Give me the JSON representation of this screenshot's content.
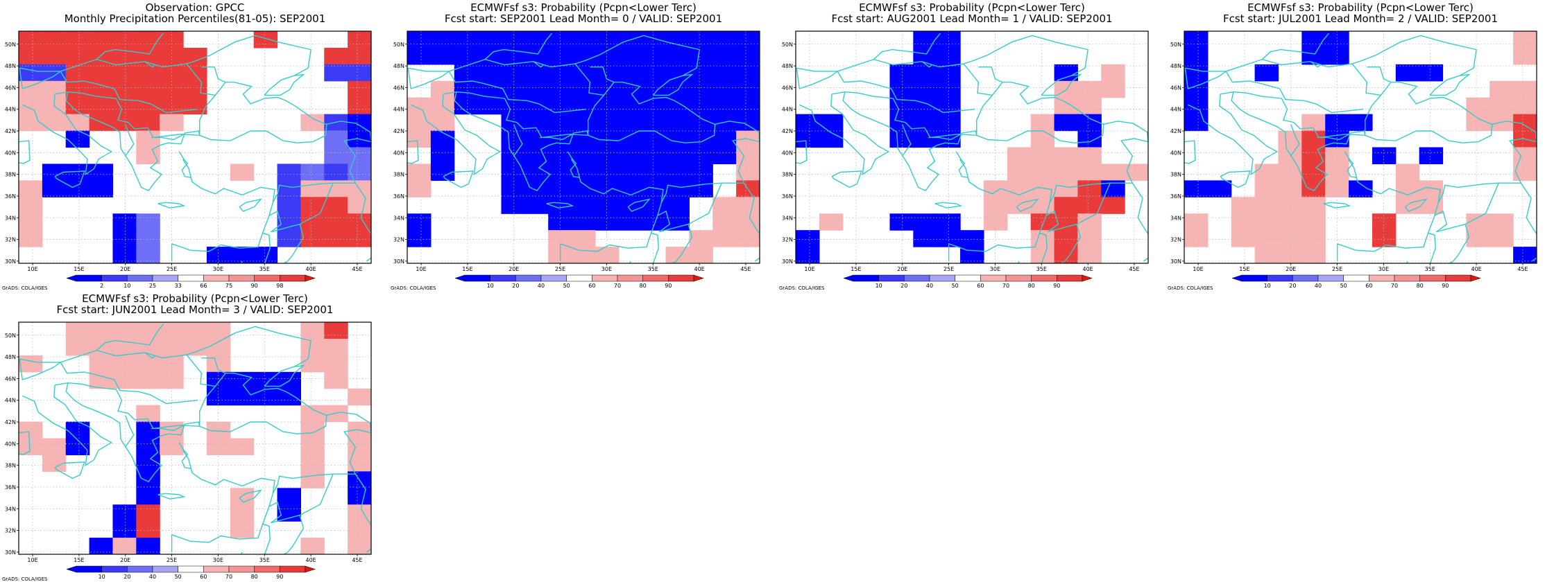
{
  "colors": {
    "blue1": "#0000ff",
    "blue2": "#3b3bf5",
    "blue3": "#6e6ef6",
    "blue4": "#a6a6f5",
    "white": "#ffffff",
    "red1": "#f7b4b4",
    "red2": "#f59494",
    "red3": "#f06a6a",
    "red4": "#ea3b3b",
    "red5": "#e31414",
    "coast": "#33cccc",
    "grid": "#bdbdbd",
    "frame": "#000000"
  },
  "axes": {
    "lon_labels": [
      "10E",
      "15E",
      "20E",
      "25E",
      "30E",
      "35E",
      "40E",
      "45E"
    ],
    "lat_labels": [
      "50N",
      "48N",
      "46N",
      "44N",
      "42N",
      "40N",
      "38N",
      "36N",
      "34N",
      "32N",
      "30N"
    ]
  },
  "credit": "GrADS: COLA/IGES",
  "panels": [
    {
      "title1": "Observation: GPCC",
      "title2": "Monthly Precipitation Percentiles(81-05): SEP2001",
      "colorbar": [
        "2",
        "10",
        "25",
        "33",
        "66",
        "75",
        "90",
        "98"
      ],
      "grid": [
        "rrrrrrrwwwrwwwr",
        "rrrrrrrrwwwwwrr",
        "ssrrrrrrwwwwwss",
        "pprrrrrrwwwwwwr",
        "pprrrrrrwwwwwwr",
        "ppprrrpwwwwwpsb",
        "wwbwwpwwwwwwwcb",
        "wwwwwpwwwwwwwcc",
        "wbbbwwwwwpwscsc",
        "pbbbwwwwwwwsppp",
        "pwwwwwwwwwwsrrp",
        "pwwwbcwwwwwsrrr",
        "pwwwbcwwwwwsrrr",
        "wwwwbcwwbbbwwww"
      ]
    },
    {
      "title1": "ECMWFsf s3: Probability (Pcpn<Lower Terc)",
      "title2": "Fcst start: SEP2001   Lead Month= 0 / VALID: SEP2001",
      "colorbar": [
        "10",
        "20",
        "40",
        "50",
        "60",
        "70",
        "80",
        "90"
      ],
      "grid": [
        "bbbbbbbbbbbbbbb",
        "bbbbbbbbbbbbbbb",
        "wwbbbbbbbbbbbbb",
        "wpbbbbbbbbbbbbb",
        "ppbbbbbbbbbbbbb",
        "ppwwbbbbbbbbbbb",
        "pbwwbbbbbbbbbbp",
        "wbwwbbbbbbbbbbp",
        "pbwwbbbbbbbbbwp",
        "pwwwbbbbbbbbbwr",
        "wwwwbbbbbbbbwpp",
        "bwwwwwbbbbbbwpp",
        "bwwwwwppwwwwppp",
        "wwwwwwpppwwppww"
      ]
    },
    {
      "title1": "ECMWFsf s3: Probability (Pcpn<Lower Terc)",
      "title2": "Fcst start: AUG2001   Lead Month= 1 / VALID: SEP2001",
      "colorbar": [
        "10",
        "20",
        "40",
        "50",
        "60",
        "70",
        "80",
        "90"
      ],
      "grid": [
        "wwwwwbbwwwwwwww",
        "wwwwwbbwwwwwwww",
        "wwwwbbbwwwwbwpw",
        "wwwwbbbwwwwpppw",
        "wwwwbbbwwwwppww",
        "bbwwbbbwwwpbbww",
        "bbwwbbbwwwpwbww",
        "wwwwwwwwwppppww",
        "wwwwwwwwwpppppp",
        "wwwwwwwwpppprbw",
        "wwwwwwwwppprrrw",
        "wpwwbbbwpwrrpww",
        "bwwwwbbbwwprpww",
        "bwwwwwwbwwprpww"
      ]
    },
    {
      "title1": "ECMWFsf s3: Probability (Pcpn<Lower Terc)",
      "title2": "Fcst start: JUL2001   Lead Month= 2 / VALID: SEP2001",
      "colorbar": [
        "10",
        "20",
        "40",
        "50",
        "60",
        "70",
        "80",
        "90"
      ],
      "grid": [
        "bwwwwbbwwwwwwwp",
        "bwwwwbbwwwwwwwp",
        "bwwbwwwwwbbwwww",
        "bwwwwwwwwwwwwpp",
        "bwwwwwwwwwwwppp",
        "bwwwwpbbwwwwppr",
        "wwwwprbwwwwwwwr",
        "wwwwprpwbwbwwwp",
        "wwwpprpwwpwwwwp",
        "bbwpprpbwppwwww",
        "wwppppwwwppwwww",
        "pwppppwwrwwwppw",
        "pwppppwwrwwwppw",
        "wwwpppwwwwwwwwb"
      ]
    },
    {
      "title1": "ECMWFsf s3: Probability (Pcpn<Lower Terc)",
      "title2": "Fcst start: JUN2001   Lead Month= 3 / VALID: SEP2001",
      "colorbar": [
        "10",
        "20",
        "40",
        "50",
        "60",
        "70",
        "80",
        "90"
      ],
      "grid": [
        "wwpppppppwwwprw",
        "wwpppppppwwwppw",
        "pwwppppwpwwwppw",
        "wwwppppwbbbbwpw",
        "wwwwwwwwbbbbwwp",
        "wwwwwpwwwwwwppw",
        "pwbwwbpwpwwwpwp",
        "ppbwwbpwppwwpwp",
        "wpwwwbwwwwwwpwp",
        "wwwwwbwwwwwwpwb",
        "wwwwwbwwwpwbwwb",
        "wwwwbrwwwpwbwwp",
        "wwwwbrwwwpwwwwp",
        "wwwbpbwwwwwwpwp"
      ]
    }
  ]
}
